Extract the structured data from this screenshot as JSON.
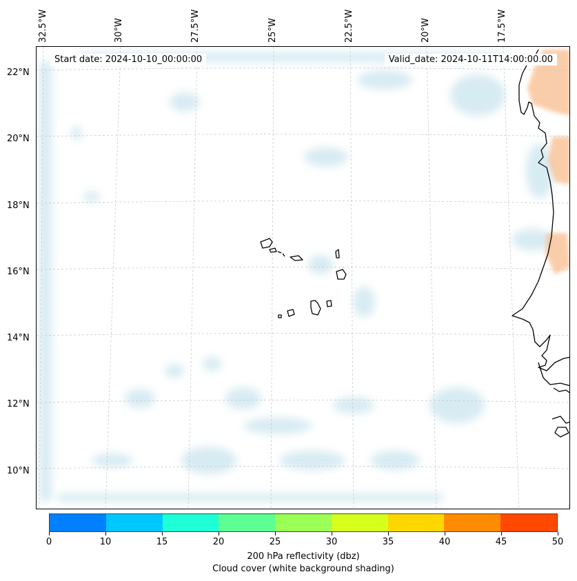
{
  "map": {
    "start_label": "Start date: 2024-10-10_00:00:00",
    "valid_label": "Valid_date: 2024-10-11T14:00:00.00",
    "lon_labels": [
      "32.5°W",
      "30°W",
      "27.5°W",
      "25°W",
      "22.5°W",
      "20°W",
      "17.5°W"
    ],
    "lat_labels": [
      "22°N",
      "20°N",
      "18°N",
      "16°N",
      "14°N",
      "12°N",
      "10°N"
    ],
    "colors": {
      "coastline": "#000000",
      "gridline": "#c8c8c8",
      "cloud_shading": "#b7dbe8",
      "reflectivity_shading": "#f9b987"
    }
  },
  "colorbar": {
    "ticks": [
      "0",
      "10",
      "15",
      "20",
      "25",
      "30",
      "35",
      "40",
      "45",
      "50"
    ],
    "colors": [
      "#0080ff",
      "#00c8ff",
      "#1effd6",
      "#5dff93",
      "#9bff55",
      "#d6ff1e",
      "#ffd700",
      "#ff8c00",
      "#ff4800"
    ],
    "label_line1": "200 hPa reflectivity (dbz)",
    "label_line2": "Cloud cover (white background shading)"
  }
}
